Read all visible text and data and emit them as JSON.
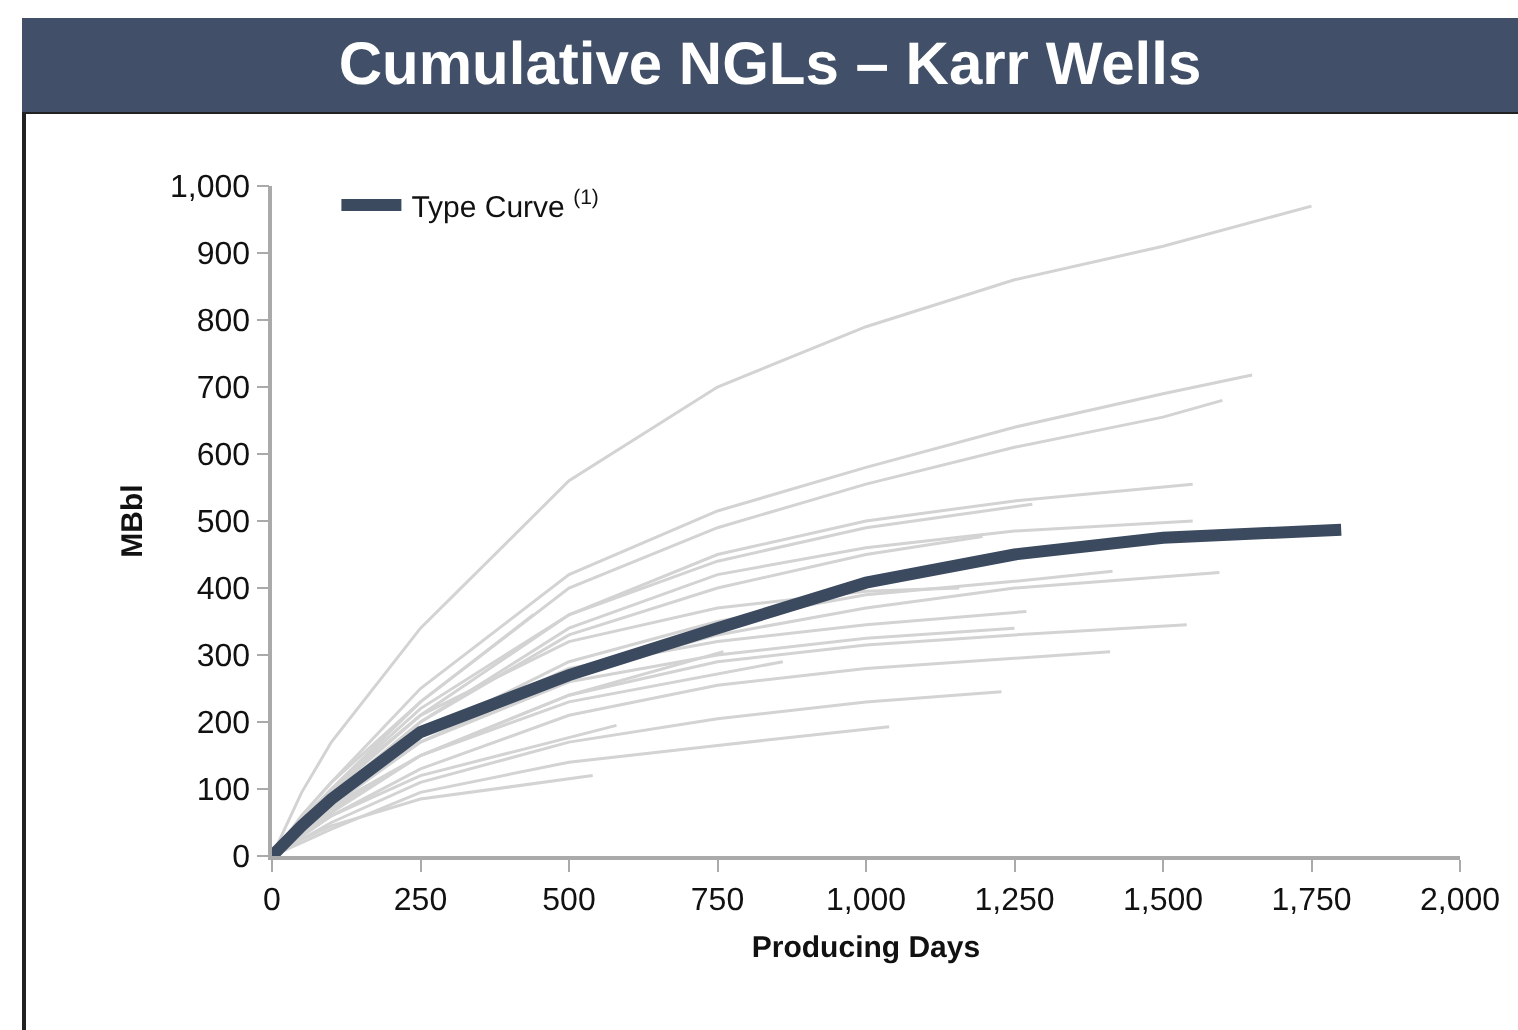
{
  "chart_data": {
    "type": "line",
    "title": "Cumulative NGLs – Karr Wells",
    "xlabel": "Producing Days",
    "ylabel": "MBbl",
    "xlim": [
      0,
      2000
    ],
    "xticks": [
      0,
      250,
      500,
      750,
      {
        "value": 1000,
        "label": "1,000"
      },
      {
        "value": 1250,
        "label": "1,250"
      },
      {
        "value": 1500,
        "label": "1,500"
      },
      {
        "value": 1750,
        "label": "1,750"
      },
      {
        "value": 2000,
        "label": "2,000"
      }
    ],
    "ylim": [
      0,
      1000
    ],
    "yticks": [
      0,
      100,
      200,
      300,
      400,
      500,
      600,
      700,
      800,
      900,
      {
        "value": 1000,
        "label": "1,000"
      }
    ],
    "legend": "top left",
    "series": [
      {
        "color": "#d3d3d3",
        "x": [
          0,
          50,
          100,
          250,
          500,
          750,
          1000,
          1250,
          1500,
          1750
        ],
        "values": [
          0,
          95,
          170,
          340,
          560,
          700,
          790,
          860,
          910,
          970
        ]
      },
      {
        "color": "#d3d3d3",
        "x": [
          0,
          50,
          100,
          250,
          500,
          750,
          1000,
          1250,
          1500,
          1650
        ],
        "values": [
          0,
          60,
          110,
          250,
          420,
          515,
          580,
          640,
          690,
          718
        ]
      },
      {
        "color": "#d3d3d3",
        "x": [
          0,
          50,
          100,
          250,
          500,
          750,
          1000,
          1250,
          1500,
          1600
        ],
        "values": [
          0,
          55,
          100,
          230,
          400,
          490,
          555,
          610,
          655,
          680
        ]
      },
      {
        "color": "#d3d3d3",
        "x": [
          0,
          50,
          100,
          250,
          500,
          750,
          1000,
          1250,
          1550
        ],
        "values": [
          0,
          50,
          95,
          210,
          360,
          450,
          500,
          530,
          555
        ]
      },
      {
        "color": "#d3d3d3",
        "x": [
          0,
          50,
          100,
          250,
          500,
          750,
          1000,
          1250,
          1550
        ],
        "values": [
          0,
          45,
          90,
          200,
          340,
          420,
          460,
          485,
          500
        ]
      },
      {
        "color": "#d3d3d3",
        "x": [
          0,
          50,
          100,
          250,
          500,
          750,
          1000,
          1280
        ],
        "values": [
          0,
          50,
          100,
          220,
          360,
          440,
          490,
          525
        ]
      },
      {
        "color": "#d3d3d3",
        "x": [
          0,
          50,
          100,
          250,
          500,
          750,
          1000,
          1196
        ],
        "values": [
          0,
          45,
          90,
          200,
          330,
          400,
          450,
          477
        ]
      },
      {
        "color": "#d3d3d3",
        "x": [
          0,
          50,
          100,
          250,
          500,
          750,
          1000,
          1250,
          1595
        ],
        "values": [
          0,
          40,
          75,
          170,
          270,
          330,
          370,
          400,
          423
        ]
      },
      {
        "color": "#d3d3d3",
        "x": [
          0,
          50,
          100,
          250,
          500,
          750,
          1000,
          1250,
          1540
        ],
        "values": [
          0,
          35,
          70,
          150,
          240,
          290,
          315,
          330,
          345
        ]
      },
      {
        "color": "#d3d3d3",
        "x": [
          0,
          50,
          100,
          250,
          500,
          750,
          1000,
          1250,
          1411
        ],
        "values": [
          0,
          30,
          60,
          130,
          210,
          255,
          280,
          295,
          305
        ]
      },
      {
        "color": "#d3d3d3",
        "x": [
          0,
          50,
          100,
          250,
          500,
          750,
          1000,
          1228
        ],
        "values": [
          0,
          25,
          50,
          110,
          170,
          205,
          230,
          245
        ]
      },
      {
        "color": "#d3d3d3",
        "x": [
          0,
          50,
          100,
          250,
          500,
          750,
          1039
        ],
        "values": [
          0,
          20,
          40,
          95,
          140,
          165,
          193
        ]
      },
      {
        "color": "#d3d3d3",
        "x": [
          0,
          50,
          100,
          250,
          500,
          750,
          1000,
          1250,
          1415
        ],
        "values": [
          0,
          45,
          85,
          180,
          290,
          350,
          390,
          410,
          425
        ]
      },
      {
        "color": "#d3d3d3",
        "x": [
          0,
          50,
          100,
          250,
          500,
          750,
          1000,
          1250
        ],
        "values": [
          0,
          40,
          80,
          170,
          260,
          300,
          325,
          340
        ]
      },
      {
        "color": "#d3d3d3",
        "x": [
          0,
          50,
          100,
          250,
          500,
          750,
          1000,
          1157
        ],
        "values": [
          0,
          50,
          100,
          210,
          320,
          370,
          395,
          400
        ]
      },
      {
        "color": "#d3d3d3",
        "x": [
          0,
          50,
          100,
          250,
          500,
          750,
          1000,
          1270
        ],
        "values": [
          0,
          40,
          80,
          180,
          280,
          320,
          345,
          365
        ]
      },
      {
        "color": "#d3d3d3",
        "x": [
          0,
          50,
          100,
          250,
          440
        ],
        "values": [
          0,
          60,
          110,
          230,
          360
        ]
      },
      {
        "color": "#d3d3d3",
        "x": [
          0,
          50,
          100,
          250,
          540
        ],
        "values": [
          0,
          25,
          45,
          85,
          120
        ]
      },
      {
        "color": "#d3d3d3",
        "x": [
          0,
          50,
          100,
          250,
          580
        ],
        "values": [
          0,
          30,
          60,
          120,
          195
        ]
      },
      {
        "color": "#d3d3d3",
        "x": [
          0,
          50,
          100,
          250,
          500,
          760
        ],
        "values": [
          0,
          35,
          65,
          150,
          240,
          305
        ]
      },
      {
        "color": "#d3d3d3",
        "x": [
          0,
          50,
          100,
          250,
          500,
          860
        ],
        "values": [
          0,
          40,
          75,
          150,
          230,
          290
        ]
      },
      {
        "name": "Type Curve $^{(1)}$",
        "color": "#3b4a5e",
        "x": [
          0,
          50,
          100,
          250,
          500,
          750,
          1000,
          1250,
          1500,
          1800
        ],
        "values": [
          0,
          45,
          85,
          185,
          270,
          340,
          408,
          450,
          475,
          487
        ]
      }
    ]
  }
}
